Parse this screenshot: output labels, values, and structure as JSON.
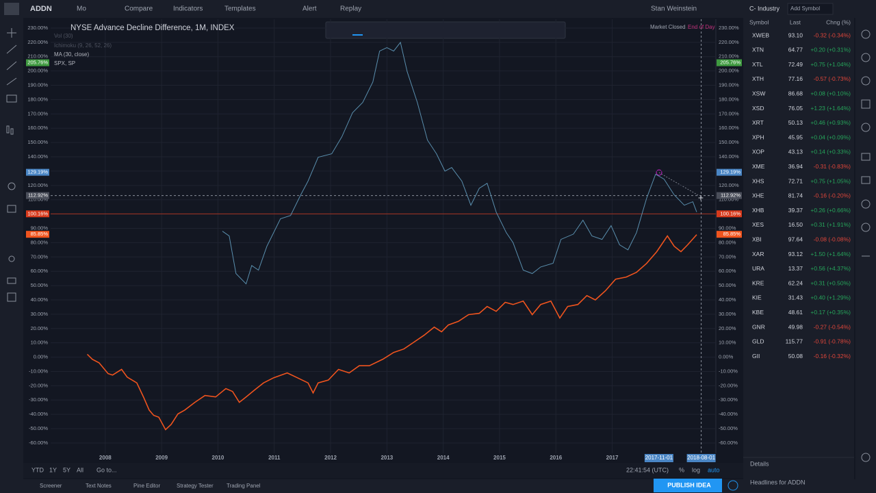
{
  "toolbar": {
    "symbol": "ADDN",
    "interval": "Mo",
    "items": [
      "Compare",
      "Indicators",
      "Templates",
      "Alert",
      "Replay"
    ],
    "user": "Stan Weinstein"
  },
  "chart_data": {
    "type": "line",
    "indicators": [
      "Vol (30)",
      "Ichimoku (9, 26, 52, 26)",
      "MA (30, close)"
    ],
    "status": [
      "Market Closed",
      "End of Day"
    ],
    "xlim": [
      2007.03,
      2018.84
    ],
    "xticks": [
      2008,
      2009,
      2010,
      2011,
      2012,
      2013,
      2014,
      2015,
      2016,
      2017
    ],
    "x_markers": [
      {
        "value": 2017.83,
        "label": "2017-11-01"
      },
      {
        "value": 2018.58,
        "label": "2018-08-01"
      }
    ],
    "ylim": [
      -67.2,
      236.2
    ],
    "yticks": [
      {
        "value": -60,
        "label": "-60.00%"
      },
      {
        "value": -50,
        "label": "-50.00%"
      },
      {
        "value": -40,
        "label": "-40.00%"
      },
      {
        "value": -30,
        "label": "-30.00%"
      },
      {
        "value": -20,
        "label": "-20.00%"
      },
      {
        "value": -10,
        "label": "-10.00%"
      },
      {
        "value": 0,
        "label": "0.00%"
      },
      {
        "value": 10,
        "label": "10.00%"
      },
      {
        "value": 20,
        "label": "20.00%"
      },
      {
        "value": 30,
        "label": "30.00%"
      },
      {
        "value": 40,
        "label": "40.00%"
      },
      {
        "value": 50,
        "label": "50.00%"
      },
      {
        "value": 60,
        "label": "60.00%"
      },
      {
        "value": 70,
        "label": "70.00%"
      },
      {
        "value": 80,
        "label": "80.00%"
      },
      {
        "value": 90,
        "label": "90.00%"
      },
      {
        "value": 100,
        "label": "100.00%"
      },
      {
        "value": 110,
        "label": "110.00%"
      },
      {
        "value": 120,
        "label": "120.00%"
      },
      {
        "value": 130,
        "label": "130.00%"
      },
      {
        "value": 140,
        "label": "140.00%"
      },
      {
        "value": 150,
        "label": "150.00%"
      },
      {
        "value": 160,
        "label": "160.00%"
      },
      {
        "value": 170,
        "label": "170.00%"
      },
      {
        "value": 180,
        "label": "180.00%"
      },
      {
        "value": 190,
        "label": "190.00%"
      },
      {
        "value": 200,
        "label": "200.00%"
      },
      {
        "value": 210,
        "label": "210.00%"
      },
      {
        "value": 220,
        "label": "220.00%"
      },
      {
        "value": 230,
        "label": "230.00%"
      }
    ],
    "grid": true,
    "price_labels": [
      {
        "value": 205.76,
        "label": "205.76%",
        "color": "#3f9a40"
      },
      {
        "value": 129.19,
        "label": "129.19%",
        "color": "#4a86c5"
      },
      {
        "value": 112.92,
        "label": "112.92%",
        "color": "#4a4e5a"
      },
      {
        "value": 100.16,
        "label": "100.16%",
        "color": "#d83a1c"
      },
      {
        "value": 85.85,
        "label": "85.85%",
        "color": "#f0541e"
      }
    ],
    "series": [
      {
        "name": "NYSE Advance Decline Difference, 1M, INDEX",
        "color": "#f0541e",
        "x": [
          2007.68,
          2007.77,
          2007.89,
          2008.05,
          2008.13,
          2008.29,
          2008.39,
          2008.56,
          2008.68,
          2008.78,
          2008.86,
          2008.95,
          2009.07,
          2009.17,
          2009.29,
          2009.41,
          2009.59,
          2009.77,
          2009.96,
          2010.14,
          2010.26,
          2010.38,
          2010.5,
          2010.65,
          2010.81,
          2010.99,
          2011.23,
          2011.41,
          2011.6,
          2011.69,
          2011.78,
          2011.96,
          2012.14,
          2012.33,
          2012.51,
          2012.69,
          2012.93,
          2013.12,
          2013.3,
          2013.48,
          2013.66,
          2013.84,
          2013.97,
          2014.09,
          2014.27,
          2014.45,
          2014.64,
          2014.78,
          2014.94,
          2015.1,
          2015.24,
          2015.42,
          2015.58,
          2015.73,
          2015.91,
          2016.07,
          2016.21,
          2016.39,
          2016.55,
          2016.7,
          2016.88,
          2017.06,
          2017.25,
          2017.43,
          2017.61,
          2017.79,
          2017.98,
          2018.1,
          2018.22,
          2018.34,
          2018.5
        ],
        "values": [
          2,
          -1.5,
          -4,
          -11.5,
          -12.5,
          -8.6,
          -14,
          -18,
          -28,
          -37,
          -40.7,
          -42,
          -50.7,
          -47,
          -39.7,
          -37,
          -31.6,
          -26.8,
          -27.8,
          -22,
          -24,
          -31.6,
          -27.8,
          -23,
          -18,
          -14.4,
          -11,
          -14.4,
          -18,
          -25,
          -18,
          -16,
          -8.6,
          -11,
          -6,
          -6,
          -1.4,
          3.3,
          5.7,
          10.5,
          15.3,
          21,
          17.7,
          22.5,
          25,
          29.7,
          30.6,
          35.4,
          32,
          38.3,
          36.8,
          39.2,
          29.7,
          36.8,
          39.2,
          27.3,
          35.4,
          36.8,
          43,
          40,
          46.4,
          54.5,
          56,
          59.3,
          65.5,
          73.7,
          84.7,
          77.5,
          73.7,
          78.5,
          85.6
        ]
      },
      {
        "name": "SPX, SP",
        "color": "#5a8fae",
        "x": [
          2010.08,
          2010.2,
          2010.32,
          2010.5,
          2010.6,
          2010.72,
          2010.87,
          2011.11,
          2011.29,
          2011.47,
          2011.6,
          2011.78,
          2012.02,
          2012.2,
          2012.39,
          2012.57,
          2012.75,
          2012.87,
          2013.0,
          2013.12,
          2013.24,
          2013.36,
          2013.54,
          2013.72,
          2013.88,
          2014.03,
          2014.15,
          2014.33,
          2014.49,
          2014.64,
          2014.78,
          2014.94,
          2015.12,
          2015.24,
          2015.42,
          2015.58,
          2015.73,
          2015.95,
          2016.09,
          2016.31,
          2016.48,
          2016.64,
          2016.82,
          2016.98,
          2017.13,
          2017.28,
          2017.43,
          2017.61,
          2017.77,
          2017.92,
          2018.1,
          2018.28,
          2018.43,
          2018.5
        ],
        "values": [
          88,
          84.7,
          58.4,
          51.2,
          64,
          60.8,
          77.5,
          96.7,
          99,
          113.4,
          123,
          139.7,
          142.1,
          154,
          170.8,
          178,
          192.3,
          213.9,
          216.3,
          213.9,
          220,
          199.5,
          178,
          151.7,
          142.1,
          130,
          132.5,
          123,
          106.2,
          118,
          121.5,
          101.4,
          87,
          80,
          60.8,
          58.4,
          63,
          65.6,
          82.3,
          86,
          95.7,
          84.7,
          82.3,
          91.9,
          78.5,
          75,
          87,
          111,
          127.8,
          124.4,
          113.4,
          106.2,
          108.6,
          101.4
        ]
      }
    ]
  },
  "bottom": {
    "ranges": [
      "YTD",
      "1Y",
      "5Y",
      "All"
    ],
    "goto": "Go to...",
    "time": "22:41:54 (UTC)",
    "scale": [
      "%",
      "log",
      "auto"
    ],
    "tabs": [
      "Screener",
      "Text Notes",
      "Pine Editor",
      "Strategy Tester",
      "Trading Panel"
    ],
    "publish": "PUBLISH IDEA"
  },
  "watchlist": {
    "list": "C- Industry",
    "add": "Add Symbol",
    "columns": [
      "Symbol",
      "Last",
      "Chng (%)"
    ],
    "rows": [
      [
        "XWEB",
        "93.10",
        "-0.32 (-0.34%)"
      ],
      [
        "XTN",
        "64.77",
        "+0.20 (+0.31%)"
      ],
      [
        "XTL",
        "72.49",
        "+0.75 (+1.04%)"
      ],
      [
        "XTH",
        "77.16",
        "-0.57 (-0.73%)"
      ],
      [
        "XSW",
        "86.68",
        "+0.08 (+0.10%)"
      ],
      [
        "XSD",
        "76.05",
        "+1.23 (+1.64%)"
      ],
      [
        "XRT",
        "50.13",
        "+0.46 (+0.93%)"
      ],
      [
        "XPH",
        "45.95",
        "+0.04 (+0.09%)"
      ],
      [
        "XOP",
        "43.13",
        "+0.14 (+0.33%)"
      ],
      [
        "XME",
        "36.94",
        "-0.31 (-0.83%)"
      ],
      [
        "XHS",
        "72.71",
        "+0.75 (+1.05%)"
      ],
      [
        "XHE",
        "81.74",
        "-0.16 (-0.20%)"
      ],
      [
        "XHB",
        "39.37",
        "+0.26 (+0.66%)"
      ],
      [
        "XES",
        "16.50",
        "+0.31 (+1.91%)"
      ],
      [
        "XBI",
        "97.64",
        "-0.08 (-0.08%)"
      ],
      [
        "XAR",
        "93.12",
        "+1.50 (+1.64%)"
      ],
      [
        "URA",
        "13.37",
        "+0.56 (+4.37%)"
      ],
      [
        "KRE",
        "62.24",
        "+0.31 (+0.50%)"
      ],
      [
        "KIE",
        "31.43",
        "+0.40 (+1.29%)"
      ],
      [
        "KBE",
        "48.61",
        "+0.17 (+0.35%)"
      ],
      [
        "GNR",
        "49.98",
        "-0.27 (-0.54%)"
      ],
      [
        "GLD",
        "115.77",
        "-0.91 (-0.78%)"
      ],
      [
        "GII",
        "50.08",
        "-0.16 (-0.32%)"
      ]
    ],
    "details": "Details",
    "headlines": "Headlines for ADDN"
  }
}
